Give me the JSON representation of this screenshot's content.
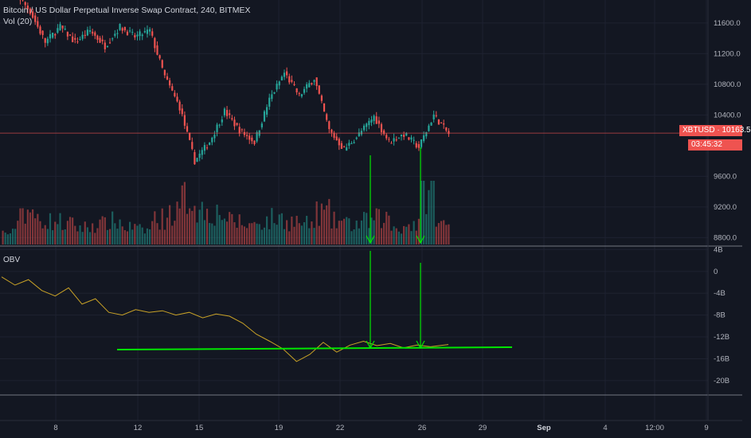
{
  "header": {
    "title": "Bitcoin / US Dollar Perpetual Inverse Swap Contract, 240, BITMEX",
    "volume_label": "Vol (20)"
  },
  "obv_label": "OBV",
  "price_tag": {
    "symbol": "XBTUSD",
    "value": "10163.5",
    "countdown": "03:45:32",
    "color": "#ef5350"
  },
  "colors": {
    "up": "#26a69a",
    "down": "#ef5350",
    "obv_line": "#c9a227",
    "annotation": "#00e600",
    "grid": "#1e2230",
    "background": "#131722"
  },
  "chart_data": [
    {
      "type": "candlestick",
      "title": "Bitcoin / US Dollar Perpetual Inverse Swap Contract, 240, BITMEX",
      "xlabel": "",
      "ylabel": "",
      "x_ticks": [
        "8",
        "12",
        "15",
        "19",
        "22",
        "26",
        "29",
        "Sep",
        "4",
        "12:00",
        "9"
      ],
      "y_ticks": [
        "11600.0",
        "11200.0",
        "10800.0",
        "10400.0",
        "9600.0",
        "9200.0",
        "8800.0"
      ],
      "ylim": [
        8700,
        11900
      ],
      "last_price": 10163.5,
      "segments": [
        {
          "from": 11950,
          "to": 12000,
          "vol": 0.2
        },
        {
          "from": 12000,
          "to": 11750,
          "vol": 0.6
        },
        {
          "from": 11750,
          "to": 11350,
          "vol": 0.45
        },
        {
          "from": 11350,
          "to": 11550,
          "vol": 0.4
        },
        {
          "from": 11550,
          "to": 11350,
          "vol": 0.35
        },
        {
          "from": 11350,
          "to": 11500,
          "vol": 0.3
        },
        {
          "from": 11500,
          "to": 11300,
          "vol": 0.35
        },
        {
          "from": 11300,
          "to": 11550,
          "vol": 0.4
        },
        {
          "from": 11550,
          "to": 11420,
          "vol": 0.3
        },
        {
          "from": 11420,
          "to": 11500,
          "vol": 0.25
        },
        {
          "from": 11500,
          "to": 10900,
          "vol": 0.45
        },
        {
          "from": 10900,
          "to": 10500,
          "vol": 0.55
        },
        {
          "from": 10500,
          "to": 9800,
          "vol": 0.8
        },
        {
          "from": 9800,
          "to": 10050,
          "vol": 0.6
        },
        {
          "from": 10050,
          "to": 10450,
          "vol": 0.55
        },
        {
          "from": 10450,
          "to": 10200,
          "vol": 0.4
        },
        {
          "from": 10200,
          "to": 10050,
          "vol": 0.35
        },
        {
          "from": 10050,
          "to": 10600,
          "vol": 0.4
        },
        {
          "from": 10600,
          "to": 10950,
          "vol": 0.45
        },
        {
          "from": 10950,
          "to": 10650,
          "vol": 0.4
        },
        {
          "from": 10650,
          "to": 10880,
          "vol": 0.35
        },
        {
          "from": 10880,
          "to": 10200,
          "vol": 0.55
        },
        {
          "from": 10200,
          "to": 9950,
          "vol": 0.4
        },
        {
          "from": 9950,
          "to": 10150,
          "vol": 0.35
        },
        {
          "from": 10150,
          "to": 10380,
          "vol": 0.4
        },
        {
          "from": 10380,
          "to": 10050,
          "vol": 0.45
        },
        {
          "from": 10050,
          "to": 10150,
          "vol": 0.3
        },
        {
          "from": 10150,
          "to": 9980,
          "vol": 0.35
        },
        {
          "from": 9980,
          "to": 10400,
          "vol": 0.95
        },
        {
          "from": 10400,
          "to": 10150,
          "vol": 0.35
        }
      ],
      "series": [
        {
          "name": "Vol (20)",
          "kind": "volume"
        }
      ]
    },
    {
      "type": "line",
      "title": "OBV",
      "y_ticks": [
        "4B",
        "0",
        "-4B",
        "-8B",
        "-12B",
        "-16B",
        "-20B"
      ],
      "ylim": [
        -22.5,
        4.5
      ],
      "series": [
        {
          "name": "OBV",
          "x": [
            0,
            0.03,
            0.06,
            0.09,
            0.12,
            0.15,
            0.18,
            0.21,
            0.24,
            0.27,
            0.3,
            0.33,
            0.36,
            0.39,
            0.42,
            0.45,
            0.48,
            0.51,
            0.54,
            0.57,
            0.6,
            0.63,
            0.66,
            0.69,
            0.72,
            0.75,
            0.78,
            0.81,
            0.84,
            0.87,
            0.9,
            0.93,
            0.96,
            1.0
          ],
          "values": [
            -1.0,
            -2.5,
            -1.5,
            -3.5,
            -4.5,
            -3.0,
            -6.0,
            -5.0,
            -7.5,
            -8.0,
            -7.0,
            -7.5,
            -7.2,
            -8.0,
            -7.5,
            -8.5,
            -7.8,
            -8.2,
            -9.5,
            -11.5,
            -12.8,
            -14.2,
            -16.5,
            -15.2,
            -13.0,
            -14.8,
            -13.5,
            -12.8,
            -13.6,
            -13.2,
            -14.0,
            -13.5,
            -13.8,
            -13.4
          ]
        }
      ]
    }
  ]
}
